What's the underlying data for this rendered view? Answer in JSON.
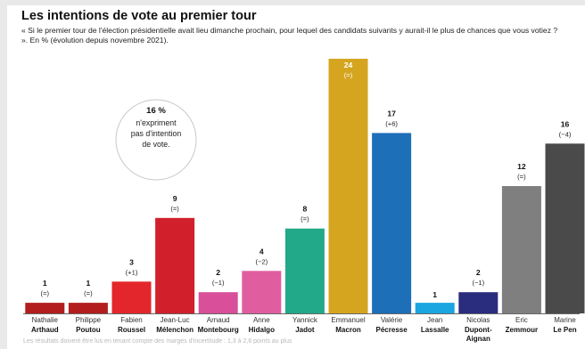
{
  "title": "Les intentions de vote au premier tour",
  "subtitle": "« Si le premier tour de l'élection présidentielle avait lieu dimanche prochain, pour lequel des candidats suivants y aurait-il le plus de chances que vous votiez ? ». En % (évolution depuis novembre 2021).",
  "footnote": "Les résultats doivent être lus en tenant compte des marges d'incertitude : 1,3 à 2,6 points au plus",
  "annotation": {
    "value": "16 %",
    "lines": [
      "n'expriment",
      "pas d'intention",
      "de vote."
    ]
  },
  "chart_data": {
    "type": "bar",
    "title": "Les intentions de vote au premier tour",
    "xlabel": "",
    "ylabel": "",
    "ylim": [
      0,
      24
    ],
    "grid": false,
    "legend": "none",
    "categories": [
      {
        "first": "Nathalie",
        "last": "Arthaud"
      },
      {
        "first": "Philippe",
        "last": "Poutou"
      },
      {
        "first": "Fabien",
        "last": "Roussel"
      },
      {
        "first": "Jean-Luc",
        "last": "Mélenchon"
      },
      {
        "first": "Arnaud",
        "last": "Montebourg"
      },
      {
        "first": "Anne",
        "last": "Hidalgo"
      },
      {
        "first": "Yannick",
        "last": "Jadot"
      },
      {
        "first": "Emmanuel",
        "last": "Macron"
      },
      {
        "first": "Valérie",
        "last": "Pécresse"
      },
      {
        "first": "Jean",
        "last": "Lassalle"
      },
      {
        "first": "Nicolas",
        "last": "Dupont-Aignan"
      },
      {
        "first": "Eric",
        "last": "Zemmour"
      },
      {
        "first": "Marine",
        "last": "Le Pen"
      }
    ],
    "values": [
      1,
      1,
      3,
      9,
      2,
      4,
      8,
      24,
      17,
      1,
      2,
      12,
      16
    ],
    "changes": [
      "(=)",
      "(=)",
      "(+1)",
      "(=)",
      "(−1)",
      "(−2)",
      "(=)",
      "(=)",
      "(+6)",
      "",
      "(−1)",
      "(=)",
      "(−4)"
    ],
    "colors": [
      "#b31d1d",
      "#b31d1d",
      "#e3262c",
      "#d11f2b",
      "#d94f9a",
      "#e05ea0",
      "#22a98a",
      "#d6a520",
      "#1d6fb8",
      "#1aa6e0",
      "#2a2d7e",
      "#7f7f7f",
      "#4a4a4a"
    ]
  }
}
